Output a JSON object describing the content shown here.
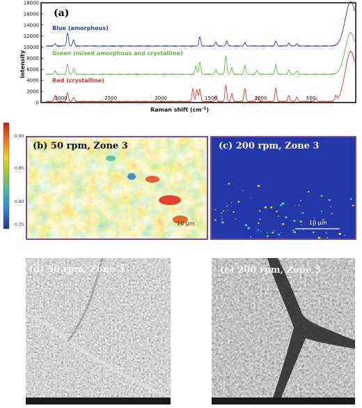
{
  "panel_a": {
    "label": "(a)",
    "chart_data": {
      "type": "line",
      "xlabel": "Raman shift (cm",
      "xlabel_sup": "-1",
      "xlabel_close": ")",
      "ylabel": "Intensity",
      "x_reversed": true,
      "xlim": [
        3200,
        50
      ],
      "ylim": [
        0,
        18000
      ],
      "x_ticks": [
        {
          "value": 3000,
          "label": "3000"
        },
        {
          "value": 2500,
          "label": "2500"
        },
        {
          "value": 2000,
          "label": "2000"
        },
        {
          "value": 1500,
          "label": "1500"
        },
        {
          "value": 1000,
          "label": "1000"
        },
        {
          "value": 500,
          "label": "500"
        }
      ],
      "y_ticks": [
        {
          "value": 0,
          "label": "0"
        },
        {
          "value": 2000,
          "label": "2000"
        },
        {
          "value": 4000,
          "label": "4000"
        },
        {
          "value": 6000,
          "label": "6000"
        },
        {
          "value": 8000,
          "label": "8000"
        },
        {
          "value": 10000,
          "label": "10000"
        },
        {
          "value": 12000,
          "label": "12000"
        },
        {
          "value": 14000,
          "label": "14000"
        },
        {
          "value": 16000,
          "label": "16000"
        },
        {
          "value": 18000,
          "label": "18000"
        }
      ],
      "series": [
        {
          "name": "Blue (amorphous)",
          "color": "#2a3a8c",
          "offset": 10200
        },
        {
          "name": "Green (mixed amorphous and crystalline)",
          "color": "#5cb843",
          "offset": 5100
        },
        {
          "name": "Red (crystalline)",
          "color": "#d8322c",
          "offset": 200
        }
      ],
      "peaks": {
        "Blue (amorphous)": [
          [
            3060,
            400
          ],
          [
            2935,
            2400
          ],
          [
            2875,
            1100
          ],
          [
            1610,
            1700
          ],
          [
            1450,
            700
          ],
          [
            1340,
            900
          ],
          [
            1160,
            600
          ],
          [
            850,
            900
          ],
          [
            720,
            500
          ],
          [
            640,
            400
          ],
          [
            100,
            8000
          ]
        ],
        "Green (mixed amorphous and crystalline)": [
          [
            3060,
            600
          ],
          [
            2935,
            1800
          ],
          [
            2875,
            1000
          ],
          [
            1650,
            1500
          ],
          [
            1610,
            2200
          ],
          [
            1450,
            900
          ],
          [
            1350,
            3400
          ],
          [
            1290,
            1200
          ],
          [
            1160,
            1600
          ],
          [
            1040,
            700
          ],
          [
            850,
            1700
          ],
          [
            720,
            800
          ],
          [
            640,
            600
          ],
          [
            100,
            7500
          ]
        ],
        "Red (crystalline)": [
          [
            3060,
            1100
          ],
          [
            2935,
            1600
          ],
          [
            2875,
            700
          ],
          [
            1680,
            2300
          ],
          [
            1640,
            2100
          ],
          [
            1610,
            2200
          ],
          [
            1450,
            1100
          ],
          [
            1350,
            3000
          ],
          [
            1290,
            1400
          ],
          [
            1160,
            2300
          ],
          [
            1040,
            900
          ],
          [
            850,
            2400
          ],
          [
            720,
            1100
          ],
          [
            640,
            800
          ],
          [
            450,
            600
          ],
          [
            250,
            900
          ],
          [
            100,
            9000
          ]
        ]
      }
    }
  },
  "panel_b": {
    "label": "(b) 50 rpm, Zone 3",
    "scale_bar": "10 μm",
    "colorbar": {
      "ticks": [
        "0.90",
        "0.85",
        "0.80",
        "0.75"
      ],
      "colors": [
        "#c81e1e",
        "#f07a1a",
        "#f0d21e",
        "#8ec63f",
        "#3ab7b0",
        "#2a7fd4",
        "#24328a"
      ]
    }
  },
  "panel_c": {
    "label": "(c) 200 rpm, Zone 3",
    "scale_bar": "10 μm"
  },
  "panel_d": {
    "label": "(d) 50 rpm, Zone 3"
  },
  "panel_e": {
    "label": "(e) 200 rpm, Zone 3"
  },
  "colors": {
    "map_frame": "#7a4aa8",
    "map_c_bg": "#2338a8"
  }
}
